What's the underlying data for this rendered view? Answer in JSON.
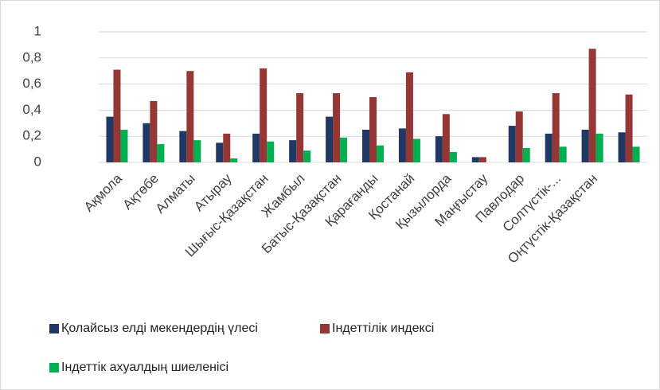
{
  "chart_data": {
    "type": "bar",
    "categories": [
      "Ақмола",
      "Ақтөбе",
      "Алматы",
      "Атырау",
      "Шығыс-Қазақстан",
      "Жамбыл",
      "Батыс-Қазақстан",
      "Қарағанды",
      "Қостанай",
      "Қызылорда",
      "Маңғыстау",
      "Павлодар",
      "Солтүстік-...",
      "Оңтүстік-Қазақстан",
      null
    ],
    "series": [
      {
        "name": "Қолайсыз елді мекендердің үлесі",
        "color": "#1f3864",
        "values": [
          0.35,
          0.3,
          0.24,
          0.15,
          0.22,
          0.17,
          0.35,
          0.25,
          0.26,
          0.2,
          0.04,
          0.28,
          0.22,
          0.25,
          0.23
        ]
      },
      {
        "name": "Індеттілік индексі",
        "color": "#953735",
        "values": [
          0.71,
          0.47,
          0.7,
          0.22,
          0.72,
          0.53,
          0.53,
          0.5,
          0.69,
          0.37,
          0.04,
          0.39,
          0.53,
          0.87,
          0.52
        ]
      },
      {
        "name": "Індеттік ахуалдың шиеленісі",
        "color": "#00b050",
        "values": [
          0.25,
          0.14,
          0.17,
          0.03,
          0.16,
          0.09,
          0.19,
          0.13,
          0.18,
          0.08,
          0,
          0.11,
          0.12,
          0.22,
          0.12
        ]
      }
    ],
    "ylim": [
      0,
      1
    ],
    "yticks": [
      0,
      {
        "value": 0.2,
        "label": "0,2"
      },
      {
        "value": 0.4,
        "label": "0,4"
      },
      {
        "value": 0.6,
        "label": "0,6"
      },
      {
        "value": 0.8,
        "label": "0,8"
      },
      1
    ],
    "grid": true
  }
}
